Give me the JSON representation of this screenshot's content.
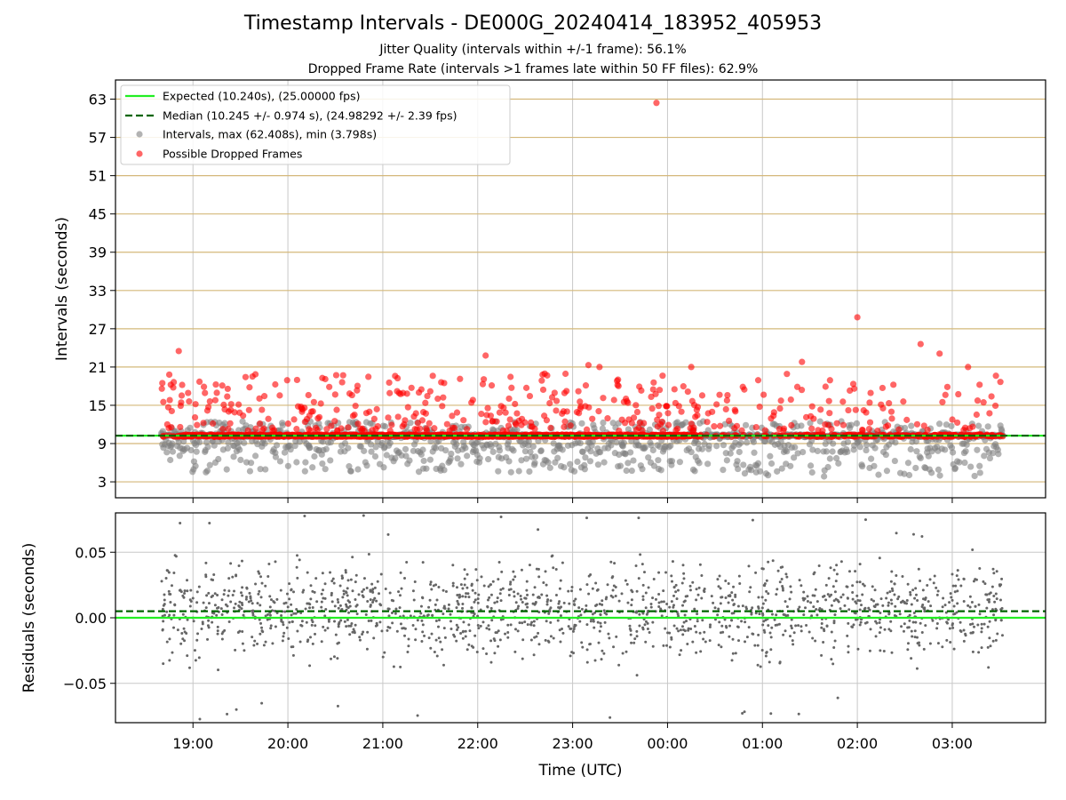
{
  "title": "Timestamp Intervals - DE000G_20240414_183952_405953",
  "subtitle_1": "Jitter Quality (intervals within +/-1 frame): 56.1%",
  "subtitle_2": "Dropped Frame Rate (intervals >1 frames late within 50 FF files): 62.9%",
  "colors": {
    "expected": "#22ee22",
    "median": "#006400",
    "intervals": "#808080",
    "dropped": "#ff0000",
    "hgrid_top": "#d4b87a",
    "vgrid": "#c8c8c8"
  },
  "chart_data": [
    {
      "type": "scatter",
      "ylabel": "Intervals (seconds)",
      "yticks": [
        3,
        9,
        15,
        21,
        27,
        33,
        39,
        45,
        51,
        57,
        63
      ],
      "ylim": [
        0.5,
        66
      ],
      "xlim": [
        "18:11",
        "03:59"
      ],
      "grid": true,
      "legend_position": "top-left",
      "legend": [
        "Expected (10.240s), (25.00000 fps)",
        "Median (10.245 +/- 0.974 s), (24.98292 +/- 2.39 fps)",
        "Intervals, max (62.408s), min (3.798s)",
        "Possible Dropped Frames"
      ],
      "expected": 10.24,
      "median": 10.245,
      "max_interval": {
        "time": "23:53",
        "value": 62.408
      },
      "min_interval": 3.798,
      "time_range": [
        "18:40",
        "03:32"
      ],
      "notable_dropped_points": [
        {
          "time": "18:51",
          "value": 23.5
        },
        {
          "time": "22:05",
          "value": 22.8
        },
        {
          "time": "22:41",
          "value": 19.8
        },
        {
          "time": "23:10",
          "value": 21.3
        },
        {
          "time": "23:17",
          "value": 21.0
        },
        {
          "time": "00:15",
          "value": 21.0
        },
        {
          "time": "01:25",
          "value": 21.8
        },
        {
          "time": "02:00",
          "value": 28.8
        },
        {
          "time": "02:40",
          "value": 24.6
        },
        {
          "time": "02:52",
          "value": 23.1
        },
        {
          "time": "03:10",
          "value": 21.0
        }
      ]
    },
    {
      "type": "scatter",
      "ylabel": "Residuals (seconds)",
      "xlabel": "Time (UTC)",
      "yticks": [
        -0.05,
        0.0,
        0.05
      ],
      "ytick_labels": [
        "−0.05",
        "0.00",
        "0.05"
      ],
      "ylim": [
        -0.08,
        0.08
      ],
      "xticks": [
        "19:00",
        "20:00",
        "21:00",
        "22:00",
        "23:00",
        "00:00",
        "01:00",
        "02:00",
        "03:00"
      ],
      "grid": true,
      "expected_residual": 0.0,
      "median_residual": 0.005,
      "spread": 0.025
    }
  ]
}
